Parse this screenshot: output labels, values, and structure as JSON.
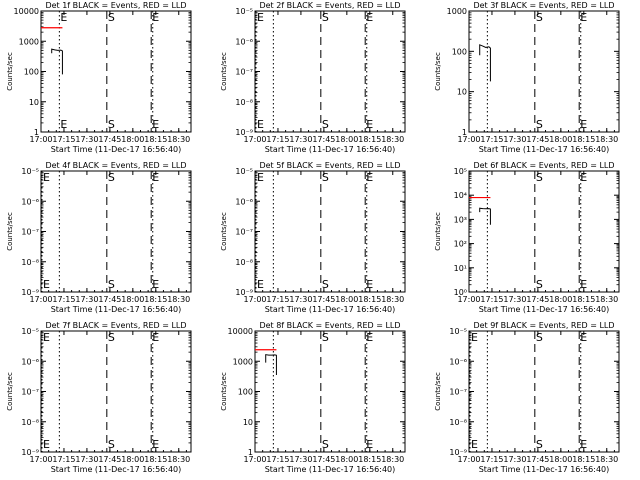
{
  "x_tick_labels": [
    "17:00",
    "17:15",
    "17:30",
    "17:45",
    "18:00",
    "18:15",
    "18:30"
  ],
  "x_label": "Start Time (11-Dec-17 16:56:40)",
  "y_label": "Counts/sec",
  "colors": {
    "events": "#000000",
    "lld": "#ff0000",
    "background": "#ffffff"
  },
  "chart_data": [
    {
      "type": "line",
      "title": "Det 1f BLACK = Events, RED = LLD",
      "xlabel": "Start Time (11-Dec-17 16:56:40)",
      "ylabel": "Counts/sec",
      "xlim": [
        "17:00",
        "18:38"
      ],
      "ylim": [
        1,
        10000
      ],
      "yscale": "log",
      "ytick_labels": [
        "1",
        "10",
        "100",
        "1000",
        "10000"
      ],
      "markers": [
        {
          "time": "17:12",
          "label": "E",
          "style": "dotted"
        },
        {
          "time": "17:43",
          "label": "S",
          "style": "dashed"
        },
        {
          "time": "18:12",
          "label": "E",
          "style": "dashed"
        },
        {
          "time": "18:13",
          "label": "",
          "style": "dotted"
        }
      ],
      "lld": {
        "x": [
          "17:00",
          "17:14"
        ],
        "y": [
          2800,
          2800
        ]
      },
      "events": {
        "x": [
          "17:07",
          "17:07",
          "17:09",
          "17:11",
          "17:13",
          "17:14",
          "17:14"
        ],
        "y": [
          400,
          550,
          520,
          500,
          510,
          480,
          80
        ]
      }
    },
    {
      "type": "line",
      "title": "Det 2f BLACK = Events, RED = LLD",
      "xlabel": "Start Time (11-Dec-17 16:56:40)",
      "ylabel": "Counts/sec",
      "xlim": [
        "17:00",
        "18:38"
      ],
      "ylim": [
        1e-09,
        1e-05
      ],
      "yscale": "log",
      "ytick_labels": [
        "10⁻⁹",
        "10⁻⁸",
        "10⁻⁷",
        "10⁻⁶",
        "10⁻⁵"
      ],
      "markers": [
        {
          "time": "16:57",
          "label": "E",
          "style": "dotted"
        },
        {
          "time": "17:12",
          "label": "",
          "style": "dotted"
        },
        {
          "time": "17:43",
          "label": "S",
          "style": "dashed"
        },
        {
          "time": "18:12",
          "label": "E",
          "style": "dashed"
        },
        {
          "time": "18:13",
          "label": "",
          "style": "dotted"
        }
      ]
    },
    {
      "type": "line",
      "title": "Det 3f BLACK = Events, RED = LLD",
      "xlabel": "Start Time (11-Dec-17 16:56:40)",
      "ylabel": "Counts/sec",
      "xlim": [
        "17:00",
        "18:38"
      ],
      "ylim": [
        1,
        1000
      ],
      "yscale": "log",
      "ytick_labels": [
        "1",
        "10",
        "100",
        "1000"
      ],
      "markers": [
        {
          "time": "17:12",
          "label": "",
          "style": "dotted"
        },
        {
          "time": "17:43",
          "label": "S",
          "style": "dashed"
        },
        {
          "time": "18:12",
          "label": "E",
          "style": "dashed"
        },
        {
          "time": "18:13",
          "label": "",
          "style": "dotted"
        }
      ],
      "events": {
        "x": [
          "17:07",
          "17:07",
          "17:09",
          "17:11",
          "17:13",
          "17:14",
          "17:14"
        ],
        "y": [
          80,
          145,
          135,
          125,
          130,
          120,
          18
        ]
      }
    },
    {
      "type": "line",
      "title": "Det 4f BLACK = Events, RED = LLD",
      "xlabel": "Start Time (11-Dec-17 16:56:40)",
      "ylabel": "Counts/sec",
      "xlim": [
        "17:00",
        "18:38"
      ],
      "ylim": [
        1e-09,
        1e-05
      ],
      "yscale": "log",
      "ytick_labels": [
        "10⁻⁹",
        "10⁻⁸",
        "10⁻⁷",
        "10⁻⁶",
        "10⁻⁵"
      ],
      "markers": [
        {
          "time": "16:57",
          "label": "E",
          "style": "dotted"
        },
        {
          "time": "17:12",
          "label": "",
          "style": "dotted"
        },
        {
          "time": "17:43",
          "label": "S",
          "style": "dashed"
        },
        {
          "time": "18:12",
          "label": "E",
          "style": "dashed"
        },
        {
          "time": "18:13",
          "label": "",
          "style": "dotted"
        }
      ]
    },
    {
      "type": "line",
      "title": "Det 5f BLACK = Events, RED = LLD",
      "xlabel": "Start Time (11-Dec-17 16:56:40)",
      "ylabel": "Counts/sec",
      "xlim": [
        "17:00",
        "18:38"
      ],
      "ylim": [
        1e-09,
        1e-05
      ],
      "yscale": "log",
      "ytick_labels": [
        "10⁻⁹",
        "10⁻⁸",
        "10⁻⁷",
        "10⁻⁶",
        "10⁻⁵"
      ],
      "markers": [
        {
          "time": "16:57",
          "label": "E",
          "style": "dotted"
        },
        {
          "time": "17:12",
          "label": "",
          "style": "dotted"
        },
        {
          "time": "17:43",
          "label": "S",
          "style": "dashed"
        },
        {
          "time": "18:12",
          "label": "E",
          "style": "dashed"
        },
        {
          "time": "18:13",
          "label": "",
          "style": "dotted"
        }
      ]
    },
    {
      "type": "line",
      "title": "Det 6f BLACK = Events, RED = LLD",
      "xlabel": "Start Time (11-Dec-17 16:56:40)",
      "ylabel": "Counts/sec",
      "xlim": [
        "17:00",
        "18:38"
      ],
      "ylim": [
        1,
        100000
      ],
      "yscale": "log",
      "ytick_labels": [
        "10⁰",
        "10¹",
        "10²",
        "10³",
        "10⁴",
        "10⁵"
      ],
      "markers": [
        {
          "time": "17:12",
          "label": "",
          "style": "dotted"
        },
        {
          "time": "17:43",
          "label": "S",
          "style": "dashed"
        },
        {
          "time": "18:12",
          "label": "E",
          "style": "dashed"
        },
        {
          "time": "18:13",
          "label": "",
          "style": "dotted"
        }
      ],
      "lld": {
        "x": [
          "17:00",
          "17:14"
        ],
        "y": [
          8000,
          8000
        ]
      },
      "events": {
        "x": [
          "17:07",
          "17:07",
          "17:09",
          "17:11",
          "17:13",
          "17:14",
          "17:14"
        ],
        "y": [
          2000,
          2900,
          2800,
          2750,
          2800,
          2700,
          600
        ]
      }
    },
    {
      "type": "line",
      "title": "Det 7f BLACK = Events, RED = LLD",
      "xlabel": "Start Time (11-Dec-17 16:56:40)",
      "ylabel": "Counts/sec",
      "xlim": [
        "17:00",
        "18:38"
      ],
      "ylim": [
        1e-09,
        1e-05
      ],
      "yscale": "log",
      "ytick_labels": [
        "10⁻⁹",
        "10⁻⁸",
        "10⁻⁷",
        "10⁻⁶",
        "10⁻⁵"
      ],
      "markers": [
        {
          "time": "16:57",
          "label": "E",
          "style": "dotted"
        },
        {
          "time": "17:12",
          "label": "",
          "style": "dotted"
        },
        {
          "time": "17:43",
          "label": "S",
          "style": "dashed"
        },
        {
          "time": "18:12",
          "label": "E",
          "style": "dashed"
        },
        {
          "time": "18:13",
          "label": "",
          "style": "dotted"
        }
      ]
    },
    {
      "type": "line",
      "title": "Det 8f BLACK = Events, RED = LLD",
      "xlabel": "Start Time (11-Dec-17 16:56:40)",
      "ylabel": "Counts/sec",
      "xlim": [
        "17:00",
        "18:38"
      ],
      "ylim": [
        1,
        10000
      ],
      "yscale": "log",
      "ytick_labels": [
        "1",
        "10",
        "100",
        "1000",
        "10000"
      ],
      "markers": [
        {
          "time": "17:12",
          "label": "",
          "style": "dotted"
        },
        {
          "time": "17:43",
          "label": "S",
          "style": "dashed"
        },
        {
          "time": "18:12",
          "label": "E",
          "style": "dashed"
        },
        {
          "time": "18:13",
          "label": "",
          "style": "dotted"
        }
      ],
      "lld": {
        "x": [
          "17:00",
          "17:14"
        ],
        "y": [
          2400,
          2400
        ]
      },
      "events": {
        "x": [
          "17:07",
          "17:07",
          "17:09",
          "17:11",
          "17:13",
          "17:14",
          "17:14"
        ],
        "y": [
          900,
          1650,
          1600,
          1600,
          1620,
          1580,
          350
        ]
      }
    },
    {
      "type": "line",
      "title": "Det 9f BLACK = Events, RED = LLD",
      "xlabel": "Start Time (11-Dec-17 16:56:40)",
      "ylabel": "Counts/sec",
      "xlim": [
        "17:00",
        "18:38"
      ],
      "ylim": [
        1e-09,
        1e-05
      ],
      "yscale": "log",
      "ytick_labels": [
        "10⁻⁹",
        "10⁻⁸",
        "10⁻⁷",
        "10⁻⁶",
        "10⁻⁵"
      ],
      "markers": [
        {
          "time": "16:57",
          "label": "E",
          "style": "dotted"
        },
        {
          "time": "17:12",
          "label": "",
          "style": "dotted"
        },
        {
          "time": "17:43",
          "label": "S",
          "style": "dashed"
        },
        {
          "time": "18:12",
          "label": "E",
          "style": "dashed"
        },
        {
          "time": "18:13",
          "label": "",
          "style": "dotted"
        }
      ]
    }
  ]
}
